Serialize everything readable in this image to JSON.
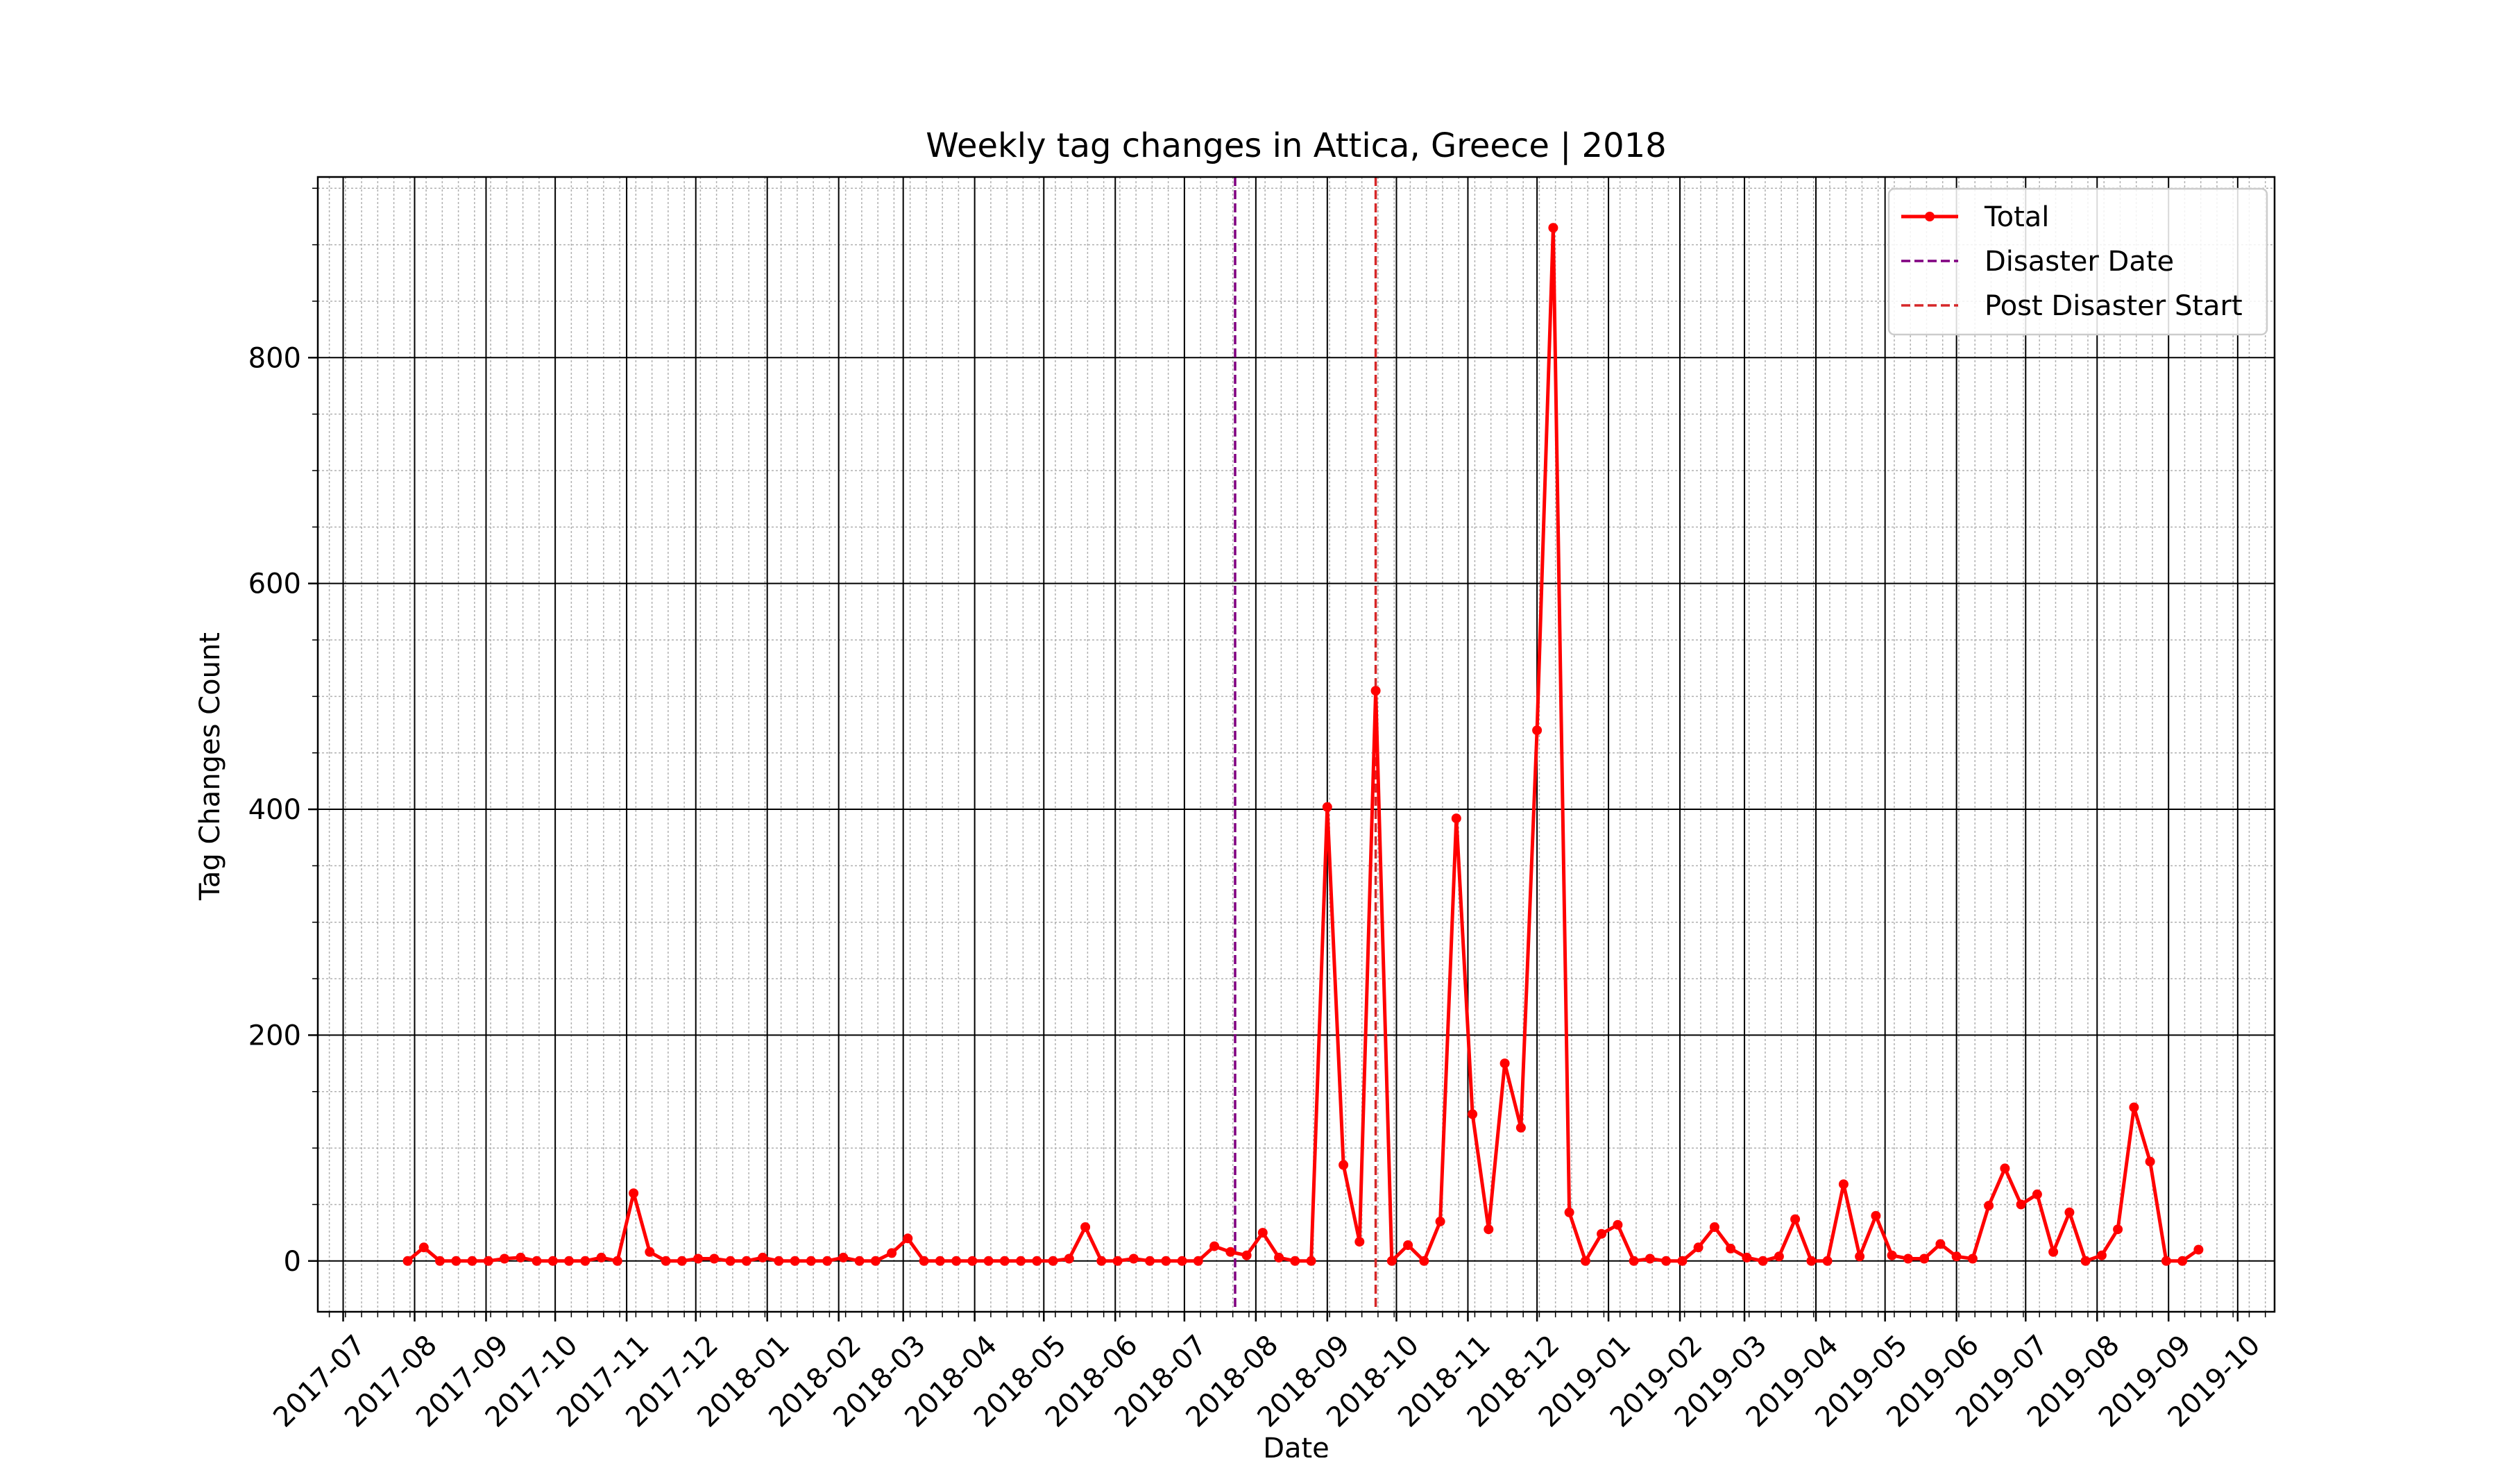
{
  "chart_data": {
    "type": "line",
    "title": "Weekly tag changes in Attica, Greece | 2018",
    "xlabel": "Date",
    "ylabel": "Tag Changes Count",
    "x_axis": {
      "type": "date",
      "range": [
        "2017-06-20",
        "2019-10-17"
      ],
      "tick_labels": [
        "2017-07",
        "2017-08",
        "2017-09",
        "2017-10",
        "2017-11",
        "2017-12",
        "2018-01",
        "2018-02",
        "2018-03",
        "2018-04",
        "2018-05",
        "2018-06",
        "2018-07",
        "2018-08",
        "2018-09",
        "2018-10",
        "2018-11",
        "2018-12",
        "2019-01",
        "2019-02",
        "2019-03",
        "2019-04",
        "2019-05",
        "2019-06",
        "2019-07",
        "2019-08",
        "2019-09",
        "2019-10"
      ]
    },
    "y_axis": {
      "range": [
        -45,
        960
      ],
      "ticks": [
        0,
        200,
        400,
        600,
        800
      ]
    },
    "grid": {
      "major": true,
      "minor": true
    },
    "legend_position": "top-right",
    "series": [
      {
        "name": "Total",
        "color": "#ff0000",
        "marker": "circle",
        "x": [
          "2017-07-29",
          "2017-08-05",
          "2017-08-12",
          "2017-08-19",
          "2017-08-26",
          "2017-09-02",
          "2017-09-09",
          "2017-09-16",
          "2017-09-23",
          "2017-09-30",
          "2017-10-07",
          "2017-10-14",
          "2017-10-21",
          "2017-10-28",
          "2017-11-04",
          "2017-11-11",
          "2017-11-18",
          "2017-11-25",
          "2017-12-02",
          "2017-12-09",
          "2017-12-16",
          "2017-12-23",
          "2017-12-30",
          "2018-01-06",
          "2018-01-13",
          "2018-01-20",
          "2018-01-27",
          "2018-02-03",
          "2018-02-10",
          "2018-02-17",
          "2018-02-24",
          "2018-03-03",
          "2018-03-10",
          "2018-03-17",
          "2018-03-24",
          "2018-03-31",
          "2018-04-07",
          "2018-04-14",
          "2018-04-21",
          "2018-04-28",
          "2018-05-05",
          "2018-05-12",
          "2018-05-19",
          "2018-05-26",
          "2018-06-02",
          "2018-06-09",
          "2018-06-16",
          "2018-06-23",
          "2018-06-30",
          "2018-07-07",
          "2018-07-14",
          "2018-07-21",
          "2018-07-28",
          "2018-08-04",
          "2018-08-11",
          "2018-08-18",
          "2018-08-25",
          "2018-09-01",
          "2018-09-08",
          "2018-09-15",
          "2018-09-22",
          "2018-09-29",
          "2018-10-06",
          "2018-10-13",
          "2018-10-20",
          "2018-10-27",
          "2018-11-03",
          "2018-11-10",
          "2018-11-17",
          "2018-11-24",
          "2018-12-01",
          "2018-12-08",
          "2018-12-15",
          "2018-12-22",
          "2018-12-29",
          "2019-01-05",
          "2019-01-12",
          "2019-01-19",
          "2019-01-26",
          "2019-02-02",
          "2019-02-09",
          "2019-02-16",
          "2019-02-23",
          "2019-03-02",
          "2019-03-09",
          "2019-03-16",
          "2019-03-23",
          "2019-03-30",
          "2019-04-06",
          "2019-04-13",
          "2019-04-20",
          "2019-04-27",
          "2019-05-04",
          "2019-05-11",
          "2019-05-18",
          "2019-05-25",
          "2019-06-01",
          "2019-06-08",
          "2019-06-15",
          "2019-06-22",
          "2019-06-29",
          "2019-07-06",
          "2019-07-13",
          "2019-07-20",
          "2019-07-27",
          "2019-08-03",
          "2019-08-10",
          "2019-08-17",
          "2019-08-24",
          "2019-08-31",
          "2019-09-07",
          "2019-09-14"
        ],
        "y": [
          0,
          12,
          0,
          0,
          0,
          0,
          2,
          3,
          0,
          0,
          0,
          0,
          3,
          0,
          60,
          8,
          0,
          0,
          2,
          2,
          0,
          0,
          3,
          0,
          0,
          0,
          0,
          3,
          0,
          0,
          7,
          20,
          0,
          0,
          0,
          0,
          0,
          0,
          0,
          0,
          0,
          2,
          30,
          0,
          0,
          2,
          0,
          0,
          0,
          0,
          13,
          8,
          5,
          25,
          3,
          0,
          0,
          402,
          85,
          17,
          505,
          0,
          14,
          0,
          35,
          392,
          130,
          28,
          175,
          118,
          470,
          915,
          43,
          0,
          24,
          32,
          0,
          2,
          0,
          0,
          12,
          30,
          11,
          3,
          0,
          4,
          37,
          0,
          0,
          68,
          4,
          40,
          5,
          2,
          2,
          15,
          4,
          2,
          49,
          82,
          50,
          59,
          8,
          43,
          0,
          5,
          28,
          136,
          88,
          0,
          0,
          10
        ]
      }
    ],
    "vlines": [
      {
        "name": "Disaster Date",
        "x": "2018-07-23",
        "color": "#800080",
        "style": "dashed"
      },
      {
        "name": "Post Disaster Start",
        "x": "2018-09-22",
        "color": "#d62728",
        "style": "dashed"
      }
    ],
    "legend": [
      "Total",
      "Disaster Date",
      "Post Disaster Start"
    ]
  }
}
